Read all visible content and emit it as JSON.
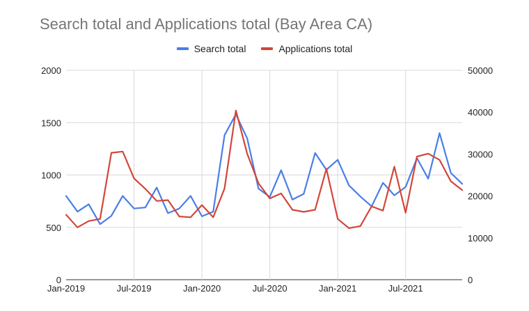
{
  "chart_data": {
    "type": "line",
    "title": "Search total and Applications total (Bay Area CA)",
    "x": [
      "2019-01",
      "2019-02",
      "2019-03",
      "2019-04",
      "2019-05",
      "2019-06",
      "2019-07",
      "2019-08",
      "2019-09",
      "2019-10",
      "2019-11",
      "2019-12",
      "2020-01",
      "2020-02",
      "2020-03",
      "2020-04",
      "2020-05",
      "2020-06",
      "2020-07",
      "2020-08",
      "2020-09",
      "2020-10",
      "2020-11",
      "2020-12",
      "2021-01",
      "2021-02",
      "2021-03",
      "2021-04",
      "2021-05",
      "2021-06",
      "2021-07",
      "2021-08",
      "2021-09",
      "2021-10",
      "2021-11",
      "2021-12"
    ],
    "x_tick_labels": [
      "Jan-2019",
      "Jul-2019",
      "Jan-2020",
      "Jul-2020",
      "Jan-2021",
      "Jul-2021"
    ],
    "y_left": {
      "ylim": [
        0,
        2000
      ],
      "ticks": [
        "0",
        "500",
        "1000",
        "1500",
        "2000"
      ]
    },
    "y_right": {
      "ylim": [
        0,
        50000
      ],
      "ticks": [
        "0",
        "10000",
        "20000",
        "30000",
        "40000",
        "50000"
      ]
    },
    "grid": true,
    "legend_position": "top",
    "series": [
      {
        "name": "Search total",
        "axis": "left",
        "color": "#4a7ee6",
        "values": [
          800,
          650,
          720,
          530,
          610,
          800,
          680,
          690,
          880,
          635,
          680,
          800,
          605,
          650,
          1380,
          1580,
          1350,
          870,
          790,
          1045,
          765,
          820,
          1210,
          1050,
          1145,
          900,
          795,
          700,
          925,
          805,
          885,
          1160,
          965,
          1400,
          1020,
          915
        ]
      },
      {
        "name": "Applications total",
        "axis": "right",
        "color": "#d2463a",
        "values": [
          15500,
          12500,
          14000,
          14500,
          30300,
          30600,
          24200,
          21700,
          18800,
          19000,
          15100,
          14900,
          17800,
          14900,
          21800,
          40400,
          30100,
          23000,
          19400,
          20600,
          16700,
          16200,
          16700,
          26500,
          14500,
          12300,
          12800,
          17500,
          16500,
          27000,
          16000,
          29400,
          30100,
          28600,
          23500,
          21400
        ]
      }
    ]
  }
}
